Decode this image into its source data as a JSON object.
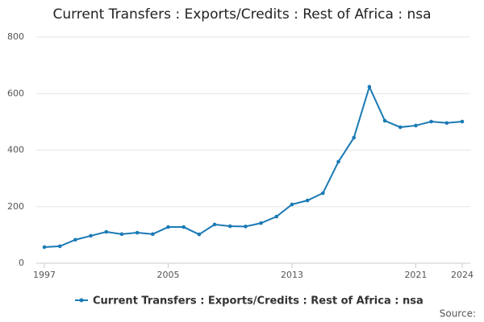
{
  "chart_data": {
    "type": "line",
    "title": "Current Transfers : Exports/Credits : Rest of Africa : nsa",
    "x": [
      1997,
      1998,
      1999,
      2000,
      2001,
      2002,
      2003,
      2004,
      2005,
      2006,
      2007,
      2008,
      2009,
      2010,
      2011,
      2012,
      2013,
      2014,
      2015,
      2016,
      2017,
      2018,
      2019,
      2020,
      2021,
      2022,
      2023,
      2024
    ],
    "series": [
      {
        "name": "Current Transfers : Exports/Credits : Rest of Africa : nsa",
        "color": "#1a7ab5",
        "values": [
          57,
          60,
          83,
          97,
          111,
          103,
          108,
          103,
          128,
          128,
          102,
          137,
          131,
          130,
          142,
          165,
          208,
          222,
          248,
          359,
          444,
          624,
          504,
          481,
          487,
          501,
          496,
          501
        ]
      }
    ],
    "xlim": [
      1997,
      2024
    ],
    "xticks": [
      1997,
      2005,
      2013,
      2021,
      2024
    ],
    "ylim": [
      0,
      800
    ],
    "yticks": [
      0,
      200,
      400,
      600,
      800
    ],
    "grid": true,
    "source": "Source:"
  }
}
